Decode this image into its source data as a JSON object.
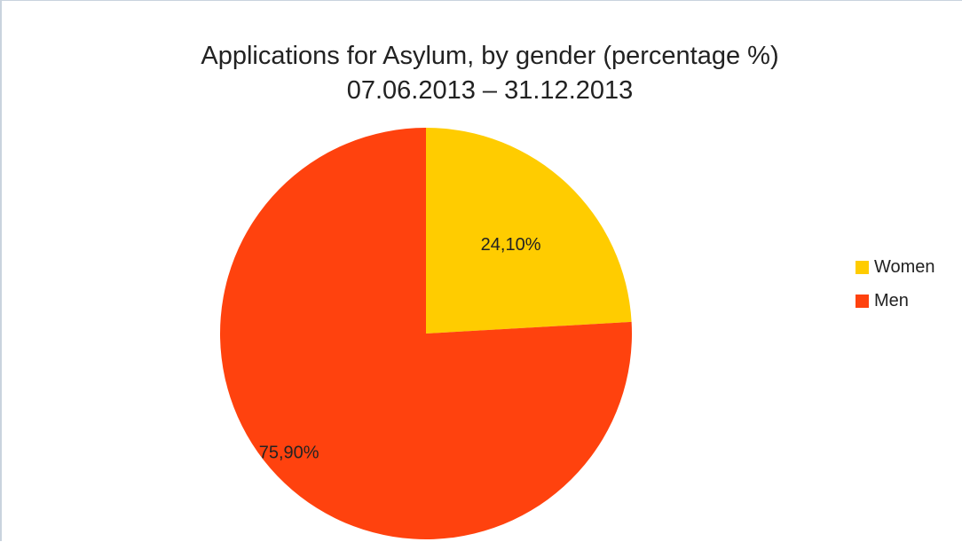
{
  "chart_data": {
    "type": "pie",
    "title": "Applications for Asylum, by gender (percentage %)",
    "subtitle": "07.06.2013 – 31.12.2013",
    "legend_position": "right",
    "slices": [
      {
        "name": "Women",
        "value": 24.1,
        "label": "24,10%",
        "color": "#ffcc00"
      },
      {
        "name": "Men",
        "value": 75.9,
        "label": "75,90%",
        "color": "#ff420e"
      }
    ]
  }
}
